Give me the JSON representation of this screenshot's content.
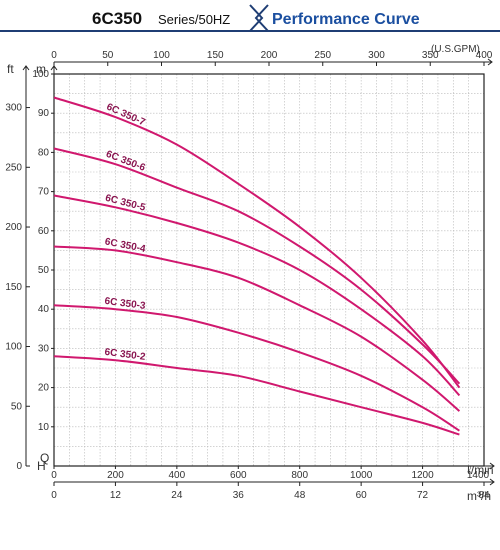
{
  "header": {
    "model": "6C350",
    "series": "Series/50HZ",
    "title": "Performance Curve"
  },
  "colors": {
    "curve": "#d0186e",
    "label": "#8a1550",
    "title": "#1b4fa0",
    "title_bar": "#1f3e74"
  },
  "chart_data": {
    "type": "line",
    "title": "Performance Curve",
    "x_axes": {
      "lpm": {
        "unit": "ℓ/min",
        "range": [
          0,
          1400
        ],
        "ticks": [
          "0",
          "200",
          "400",
          "600",
          "800",
          "1000",
          "1200",
          "1400"
        ]
      },
      "m3h": {
        "unit": "m³/h",
        "range": [
          0,
          84
        ],
        "ticks": [
          "0",
          "12",
          "24",
          "36",
          "48",
          "60",
          "72",
          "84"
        ]
      },
      "gpm": {
        "unit": "(U.S.GPM)",
        "ticks": [
          "0",
          "50",
          "100",
          "150",
          "200",
          "250",
          "300",
          "350",
          "400"
        ]
      }
    },
    "y_axes": {
      "m": {
        "unit": "m",
        "range": [
          0,
          100
        ],
        "ticks": [
          "10",
          "20",
          "30",
          "40",
          "50",
          "60",
          "70",
          "80",
          "90",
          "100"
        ]
      },
      "ft": {
        "unit": "ft",
        "ticks": [
          "0",
          "50",
          "100",
          "150",
          "200",
          "250",
          "300"
        ]
      }
    },
    "axis_letters": {
      "head": "H",
      "flow": "Q"
    },
    "grid": true,
    "series": [
      {
        "name": "6C 350-7",
        "x": [
          0,
          200,
          400,
          600,
          800,
          1000,
          1200,
          1320
        ],
        "y": [
          94,
          89,
          82,
          72,
          61,
          48,
          32,
          20
        ]
      },
      {
        "name": "6C 350-6",
        "x": [
          0,
          200,
          400,
          600,
          800,
          1000,
          1200,
          1320
        ],
        "y": [
          81,
          77,
          71,
          65,
          56,
          45,
          31,
          21
        ]
      },
      {
        "name": "6C 350-5",
        "x": [
          0,
          200,
          400,
          600,
          800,
          1000,
          1200,
          1320
        ],
        "y": [
          69,
          66,
          62,
          57,
          50,
          40,
          28,
          18
        ]
      },
      {
        "name": "6C 350-4",
        "x": [
          0,
          200,
          400,
          600,
          800,
          1000,
          1200,
          1320
        ],
        "y": [
          56,
          55,
          52,
          48,
          41,
          33,
          22,
          14
        ]
      },
      {
        "name": "6C 350-3",
        "x": [
          0,
          200,
          400,
          600,
          800,
          1000,
          1200,
          1320
        ],
        "y": [
          41,
          40,
          38,
          34,
          29,
          23,
          15,
          9
        ]
      },
      {
        "name": "6C 350-2",
        "x": [
          0,
          200,
          400,
          600,
          800,
          1000,
          1200,
          1320
        ],
        "y": [
          28,
          27,
          25,
          23,
          19,
          15,
          11,
          8
        ]
      }
    ]
  }
}
